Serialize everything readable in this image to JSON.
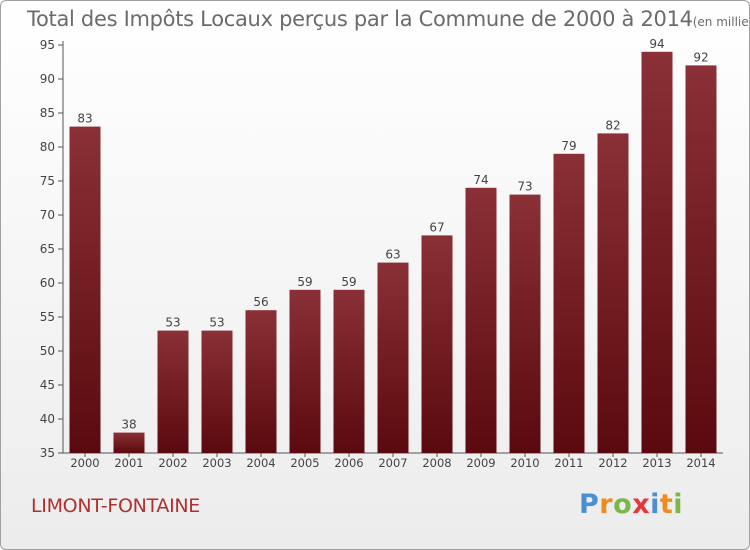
{
  "title": "Total des Impôts Locaux perçus par la Commune de 2000 à 2014",
  "unit": "(en milliers d'€)",
  "commune": "LIMONT-FONTAINE",
  "logo": {
    "letters": [
      "P",
      "r",
      "o",
      "x",
      "i",
      "t",
      "i"
    ],
    "colors": [
      "#4a8fd4",
      "#f08a1c",
      "#7ab648",
      "#e23a3a",
      "#4a8fd4",
      "#f08a1c",
      "#7ab648"
    ]
  },
  "chart_data": {
    "type": "bar",
    "categories": [
      "2000",
      "2001",
      "2002",
      "2003",
      "2004",
      "2005",
      "2006",
      "2007",
      "2008",
      "2009",
      "2010",
      "2011",
      "2012",
      "2013",
      "2014"
    ],
    "values": [
      83,
      38,
      53,
      53,
      56,
      59,
      59,
      63,
      67,
      74,
      73,
      79,
      82,
      94,
      92
    ],
    "ylim": [
      35,
      95
    ],
    "yticks": [
      35,
      40,
      45,
      50,
      55,
      60,
      65,
      70,
      75,
      80,
      85,
      90,
      95
    ],
    "bar_color": "#7a1f24",
    "grid": false
  }
}
